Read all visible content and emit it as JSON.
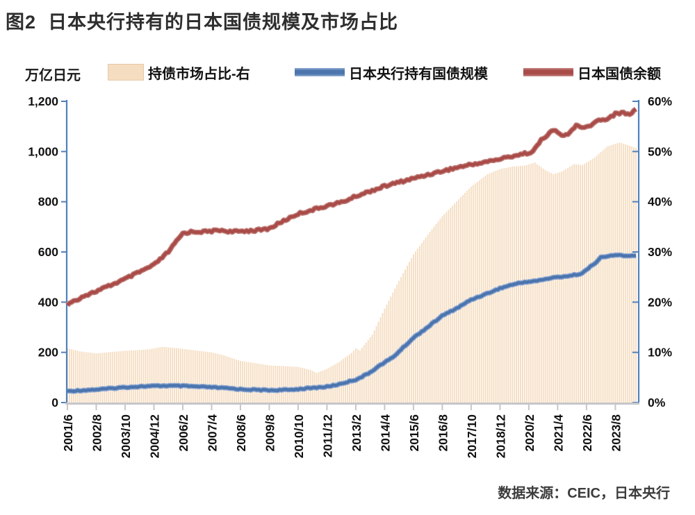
{
  "title": "图2  日本央行持有的日本国债规模及市场占比",
  "unit_label": "万亿日元",
  "legend": [
    {
      "label": "持债市场占比-右",
      "swatch": "bar",
      "color": "#f5ddc1"
    },
    {
      "label": "日本央行持有国债规模",
      "swatch": "line",
      "color": "#4c75ae"
    },
    {
      "label": "日本国债余额",
      "swatch": "line",
      "color": "#a94b48"
    }
  ],
  "source": "数据来源：CEIC，日本央行",
  "colors": {
    "bar_fill": "#f5ddc1",
    "bar_edge": "#eccfa8",
    "boj_line_core": "#4c75ae",
    "boj_line_halo": "#8fa8d2",
    "jgb_line_core": "#a94b48",
    "jgb_line_halo": "#c07e7a",
    "value_axis": "#4f81bd",
    "x_axis": "#c6c6cb",
    "tick_text": "#111111"
  },
  "chart_data": {
    "type": "combo",
    "x_unit": "months since 2001/6, monthly series",
    "x_start": "2001/6",
    "x_end": "2024/6",
    "x_tick_labels": [
      "2001/6",
      "2002/8",
      "2003/10",
      "2004/12",
      "2006/2",
      "2007/4",
      "2008/6",
      "2009/8",
      "2010/10",
      "2011/12",
      "2013/2",
      "2014/4",
      "2015/6",
      "2016/8",
      "2017/10",
      "2018/12",
      "2020/2",
      "2021/4",
      "2022/6",
      "2023/8"
    ],
    "x_tick_interval_months": 14,
    "left_axis": {
      "label": "万亿日元",
      "min": 0,
      "max": 1200,
      "ticks": [
        "0",
        "200",
        "400",
        "600",
        "800",
        "1,000",
        "1,200"
      ]
    },
    "right_axis": {
      "min": 0,
      "max": 60,
      "ticks": [
        "0%",
        "10%",
        "20%",
        "30%",
        "40%",
        "50%",
        "60%"
      ]
    },
    "grid": false,
    "legend_position": "top",
    "series": [
      {
        "name": "持债市场占比-右",
        "type": "bar",
        "axis": "right",
        "unit": "%",
        "anchors": [
          [
            0,
            10.8
          ],
          [
            6,
            10.2
          ],
          [
            14,
            9.8
          ],
          [
            22,
            10.1
          ],
          [
            28,
            10.3
          ],
          [
            40,
            10.6
          ],
          [
            46,
            11.1
          ],
          [
            52,
            10.9
          ],
          [
            56,
            10.7
          ],
          [
            64,
            10.3
          ],
          [
            70,
            10.0
          ],
          [
            76,
            9.4
          ],
          [
            84,
            8.3
          ],
          [
            92,
            7.8
          ],
          [
            98,
            7.4
          ],
          [
            108,
            7.2
          ],
          [
            112,
            7.1
          ],
          [
            118,
            6.5
          ],
          [
            121,
            5.9
          ],
          [
            126,
            6.7
          ],
          [
            132,
            8.1
          ],
          [
            138,
            9.9
          ],
          [
            140,
            10.8
          ],
          [
            142,
            10.4
          ],
          [
            148,
            13.5
          ],
          [
            154,
            18.7
          ],
          [
            160,
            23.5
          ],
          [
            168,
            29.5
          ],
          [
            176,
            34.0
          ],
          [
            182,
            37.1
          ],
          [
            190,
            40.5
          ],
          [
            196,
            43.0
          ],
          [
            204,
            45.5
          ],
          [
            210,
            46.5
          ],
          [
            216,
            47.0
          ],
          [
            222,
            47.2
          ],
          [
            227,
            47.8
          ],
          [
            232,
            46.3
          ],
          [
            236,
            45.5
          ],
          [
            240,
            46.0
          ],
          [
            246,
            47.5
          ],
          [
            250,
            47.3
          ],
          [
            256,
            48.8
          ],
          [
            262,
            51.0
          ],
          [
            268,
            51.8
          ],
          [
            272,
            51.3
          ],
          [
            276,
            50.7
          ]
        ]
      },
      {
        "name": "日本央行持有国债规模",
        "type": "line",
        "axis": "left",
        "unit": "万亿日元",
        "anchors": [
          [
            0,
            45
          ],
          [
            8,
            49
          ],
          [
            16,
            53
          ],
          [
            28,
            61
          ],
          [
            38,
            65
          ],
          [
            48,
            67
          ],
          [
            56,
            66
          ],
          [
            64,
            63
          ],
          [
            70,
            61
          ],
          [
            78,
            57
          ],
          [
            84,
            53
          ],
          [
            94,
            50
          ],
          [
            100,
            49
          ],
          [
            108,
            51
          ],
          [
            114,
            55
          ],
          [
            120,
            59
          ],
          [
            126,
            63
          ],
          [
            132,
            73
          ],
          [
            138,
            87
          ],
          [
            140,
            91
          ],
          [
            146,
            115
          ],
          [
            152,
            150
          ],
          [
            158,
            180
          ],
          [
            168,
            258
          ],
          [
            174,
            295
          ],
          [
            182,
            346
          ],
          [
            190,
            380
          ],
          [
            196,
            410
          ],
          [
            204,
            435
          ],
          [
            210,
            455
          ],
          [
            216,
            470
          ],
          [
            222,
            480
          ],
          [
            228,
            485
          ],
          [
            234,
            495
          ],
          [
            238,
            500
          ],
          [
            244,
            505
          ],
          [
            250,
            515
          ],
          [
            253,
            535
          ],
          [
            256,
            555
          ],
          [
            259,
            578
          ],
          [
            264,
            585
          ],
          [
            268,
            588
          ],
          [
            272,
            583
          ],
          [
            276,
            585
          ]
        ]
      },
      {
        "name": "日本国债余额",
        "type": "line",
        "axis": "left",
        "unit": "万亿日元",
        "anchors": [
          [
            0,
            390
          ],
          [
            8,
            425
          ],
          [
            14,
            443
          ],
          [
            28,
            492
          ],
          [
            42,
            548
          ],
          [
            49,
            600
          ],
          [
            56,
            674
          ],
          [
            60,
            680
          ],
          [
            68,
            681
          ],
          [
            74,
            687
          ],
          [
            80,
            680
          ],
          [
            86,
            684
          ],
          [
            92,
            686
          ],
          [
            98,
            693
          ],
          [
            104,
            720
          ],
          [
            112,
            752
          ],
          [
            120,
            770
          ],
          [
            126,
            784
          ],
          [
            134,
            800
          ],
          [
            140,
            822
          ],
          [
            148,
            845
          ],
          [
            154,
            862
          ],
          [
            162,
            880
          ],
          [
            168,
            893
          ],
          [
            176,
            910
          ],
          [
            182,
            922
          ],
          [
            190,
            938
          ],
          [
            196,
            948
          ],
          [
            204,
            960
          ],
          [
            210,
            970
          ],
          [
            216,
            982
          ],
          [
            222,
            992
          ],
          [
            226,
            1000
          ],
          [
            230,
            1045
          ],
          [
            234,
            1075
          ],
          [
            237,
            1085
          ],
          [
            240,
            1062
          ],
          [
            243,
            1068
          ],
          [
            247,
            1105
          ],
          [
            250,
            1092
          ],
          [
            253,
            1100
          ],
          [
            258,
            1125
          ],
          [
            262,
            1130
          ],
          [
            266,
            1150
          ],
          [
            270,
            1155
          ],
          [
            273,
            1148
          ],
          [
            276,
            1168
          ]
        ]
      }
    ],
    "anchor_format": "[months since 2001/6, value]; monthly points linearly interpolated between anchors"
  }
}
